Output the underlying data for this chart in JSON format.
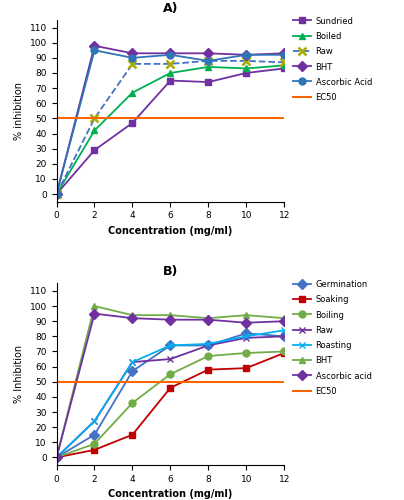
{
  "x": [
    0,
    2,
    4,
    6,
    8,
    10,
    12
  ],
  "panel_a": {
    "title": "A)",
    "ylabel": "% inhibition",
    "xlabel": "Concentration (mg/ml)",
    "series": [
      {
        "label": "Sundried",
        "y": [
          0,
          29,
          47,
          75,
          74,
          80,
          83
        ],
        "color": "#7030A0",
        "marker": "s",
        "linestyle": "-",
        "dashed": false
      },
      {
        "label": "Boiled",
        "y": [
          0,
          42,
          67,
          80,
          84,
          83,
          85
        ],
        "color": "#00B050",
        "marker": "^",
        "linestyle": "-",
        "dashed": false
      },
      {
        "label": "Raw",
        "y": [
          0,
          50,
          86,
          86,
          88,
          88,
          87
        ],
        "color": "#4472C4",
        "marker": "x",
        "linestyle": "--",
        "dashed": true
      },
      {
        "label": "BHT",
        "y": [
          0,
          98,
          93,
          93,
          93,
          92,
          93
        ],
        "color": "#7030A0",
        "marker": "D",
        "linestyle": "-",
        "dashed": false
      },
      {
        "label": "Ascorbic Acid",
        "y": [
          0,
          95,
          90,
          92,
          88,
          92,
          92
        ],
        "color": "#2E75B6",
        "marker": "o",
        "linestyle": "-",
        "dashed": false
      },
      {
        "label": "EC50",
        "y": [
          50,
          50,
          50,
          50,
          50,
          50,
          50
        ],
        "color": "#FF6600",
        "marker": null,
        "linestyle": "-",
        "dashed": false
      }
    ]
  },
  "panel_b": {
    "title": "B)",
    "ylabel": "% Inhibition",
    "xlabel": "Concentration (mg/ml)",
    "series": [
      {
        "label": "Germination",
        "y": [
          0,
          15,
          57,
          74,
          74,
          82,
          80
        ],
        "color": "#4472C4",
        "marker": "D",
        "linestyle": "-",
        "dashed": false
      },
      {
        "label": "Soaking",
        "y": [
          0,
          5,
          15,
          46,
          58,
          59,
          69
        ],
        "color": "#C00000",
        "marker": "s",
        "linestyle": "-",
        "dashed": false
      },
      {
        "label": "Boiling",
        "y": [
          0,
          9,
          36,
          55,
          67,
          69,
          70
        ],
        "color": "#70AD47",
        "marker": "o",
        "linestyle": "-",
        "dashed": false
      },
      {
        "label": "Raw",
        "y": [
          0,
          24,
          63,
          65,
          74,
          79,
          80
        ],
        "color": "#7030A0",
        "marker": "x",
        "linestyle": "-",
        "dashed": false
      },
      {
        "label": "Roasting",
        "y": [
          0,
          24,
          63,
          74,
          75,
          80,
          84
        ],
        "color": "#00B0F0",
        "marker": "x",
        "linestyle": "-",
        "dashed": false
      },
      {
        "label": "BHT",
        "y": [
          0,
          100,
          94,
          94,
          92,
          94,
          92
        ],
        "color": "#70AD47",
        "marker": "^",
        "linestyle": "-",
        "dashed": false
      },
      {
        "label": "Ascorbic acid",
        "y": [
          0,
          95,
          92,
          91,
          91,
          89,
          90
        ],
        "color": "#7030A0",
        "marker": "D",
        "linestyle": "-",
        "dashed": false
      },
      {
        "label": "EC50",
        "y": [
          50,
          50,
          50,
          50,
          50,
          50,
          50
        ],
        "color": "#FF6600",
        "marker": null,
        "linestyle": "-",
        "dashed": false
      }
    ]
  }
}
